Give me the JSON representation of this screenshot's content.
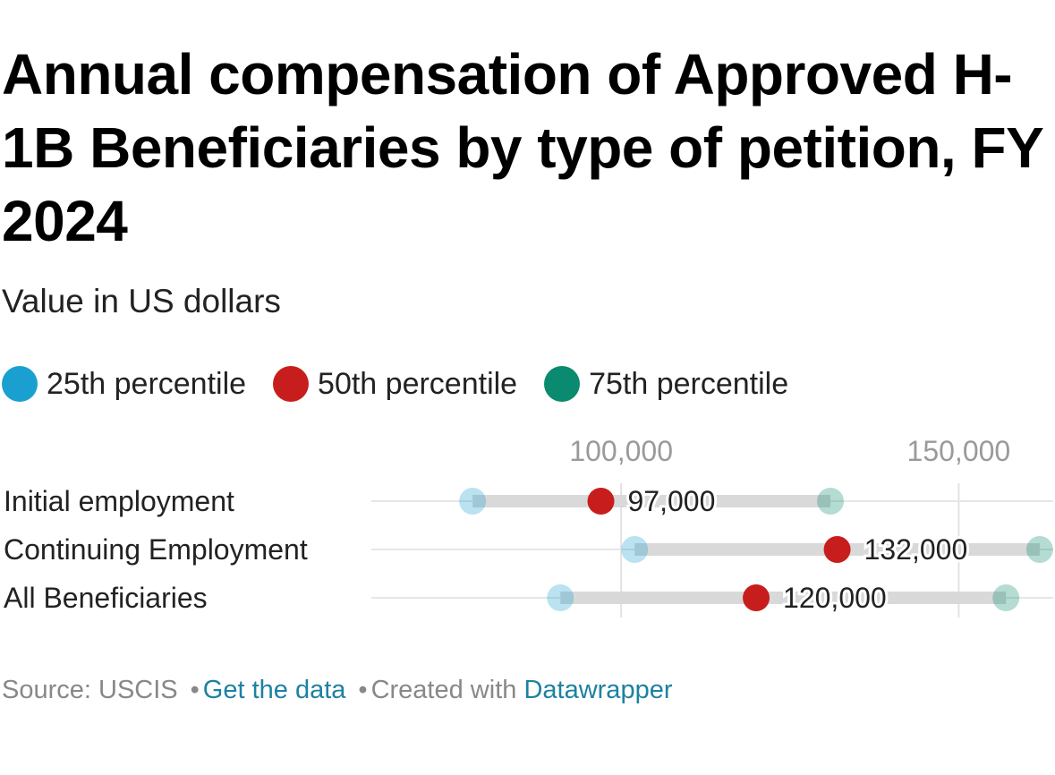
{
  "title": "Annual compensation of Approved H-1B Beneficiaries by type of petition, FY 2024",
  "subtitle": "Value in US dollars",
  "legend": [
    {
      "label": "25th percentile",
      "color": "#1aa0d0"
    },
    {
      "label": "50th percentile",
      "color": "#c71e1d"
    },
    {
      "label": "75th percentile",
      "color": "#0a8a6e"
    }
  ],
  "chart_data": {
    "type": "dot-range",
    "xlabel": "",
    "ylabel": "",
    "xlim": [
      63000,
      164000
    ],
    "ticks": [
      {
        "value": 100000,
        "label": "100,000"
      },
      {
        "value": 150000,
        "label": "150,000"
      }
    ],
    "categories": [
      "Initial employment",
      "Continuing Employment",
      "All Beneficiaries"
    ],
    "series": [
      {
        "name": "25th percentile",
        "color": "#1aa0d0",
        "values": [
          78000,
          102000,
          91000
        ]
      },
      {
        "name": "50th percentile",
        "color": "#c71e1d",
        "values": [
          97000,
          132000,
          120000
        ]
      },
      {
        "name": "75th percentile",
        "color": "#0a8a6e",
        "values": [
          131000,
          162000,
          157000
        ]
      }
    ],
    "median_labels": [
      "97,000",
      "132,000",
      "120,000"
    ]
  },
  "footer": {
    "source": "Source: USCIS",
    "sep": "•",
    "get_data": "Get the data",
    "created": "Created with",
    "tool": "Datawrapper"
  }
}
